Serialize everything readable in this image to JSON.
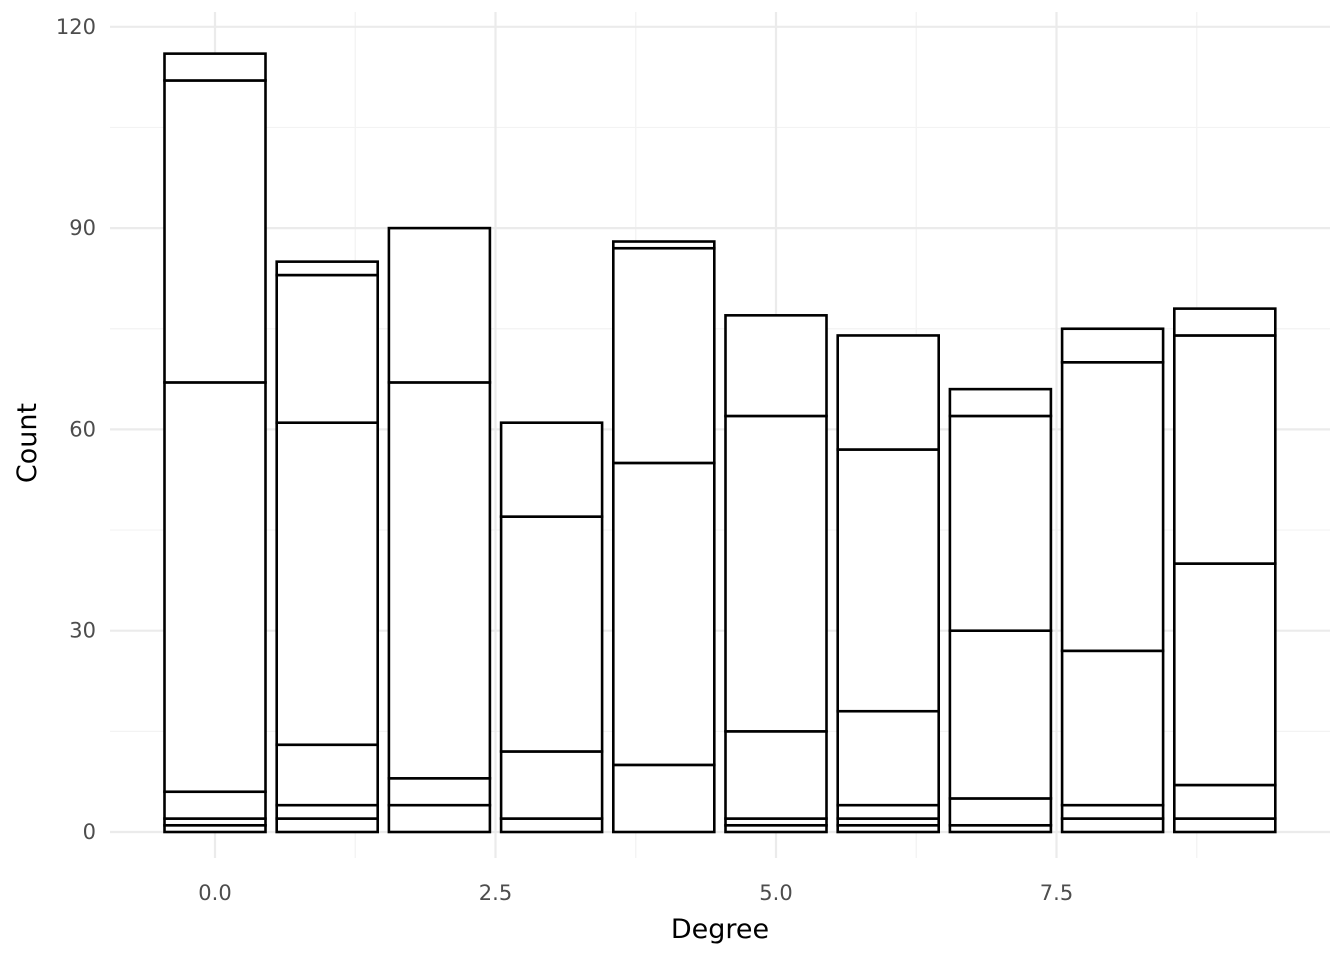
{
  "chart_data": {
    "type": "bar",
    "stacked": true,
    "title": "",
    "xlabel": "Degree",
    "ylabel": "Count",
    "xlim": [
      -1,
      10
    ],
    "ylim": [
      -5,
      120
    ],
    "x_ticks": [
      0,
      2.5,
      5,
      7.5
    ],
    "x_tick_labels": [
      "0.0",
      "2.5",
      "5.0",
      "7.5"
    ],
    "y_ticks": [
      0,
      30,
      60,
      90,
      120
    ],
    "y_tick_labels": [
      "0",
      "30",
      "60",
      "90",
      "120"
    ],
    "grid": true,
    "legend": "none",
    "bar_fill": "#ffffff",
    "bar_outline": "#000000",
    "bars": [
      {
        "x": 0,
        "boundaries": [
          0,
          1,
          2,
          6,
          67,
          112,
          116
        ]
      },
      {
        "x": 1,
        "boundaries": [
          0,
          2,
          4,
          13,
          61,
          83,
          85
        ]
      },
      {
        "x": 2,
        "boundaries": [
          0,
          4,
          8,
          67,
          90
        ]
      },
      {
        "x": 3,
        "boundaries": [
          0,
          2,
          12,
          47,
          61
        ]
      },
      {
        "x": 4,
        "boundaries": [
          0,
          10,
          55,
          87,
          88
        ]
      },
      {
        "x": 5,
        "boundaries": [
          0,
          1,
          2,
          15,
          62,
          77
        ]
      },
      {
        "x": 6,
        "boundaries": [
          0,
          1,
          2,
          4,
          18,
          57,
          74
        ]
      },
      {
        "x": 7,
        "boundaries": [
          0,
          1,
          5,
          30,
          62,
          66
        ]
      },
      {
        "x": 8,
        "boundaries": [
          0,
          2,
          4,
          27,
          70,
          75
        ]
      },
      {
        "x": 9,
        "boundaries": [
          0,
          2,
          7,
          40,
          74,
          78
        ]
      }
    ]
  }
}
